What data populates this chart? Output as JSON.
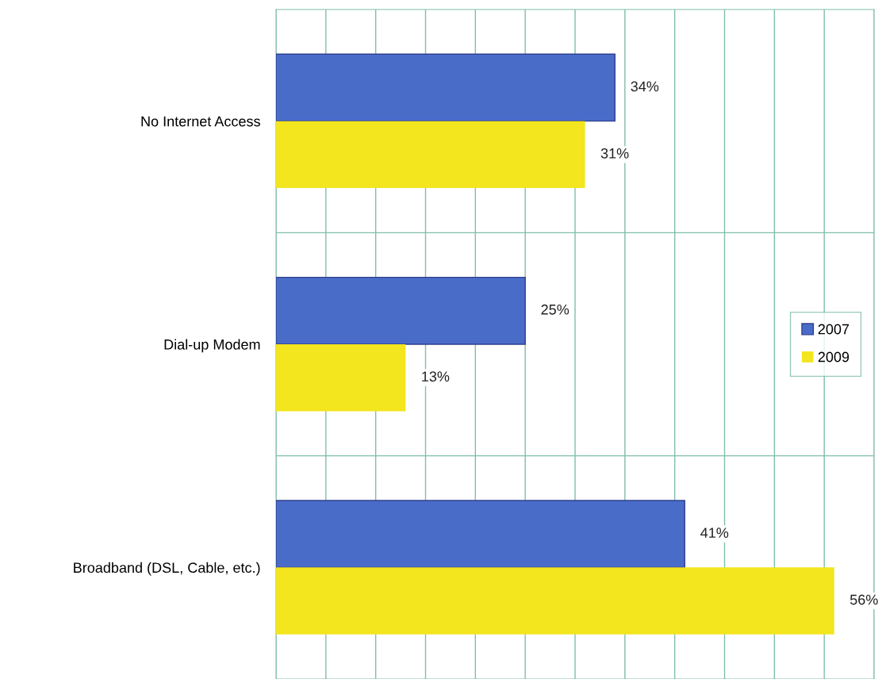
{
  "chart_data": {
    "type": "bar",
    "orientation": "horizontal",
    "categories": [
      "No Internet Access",
      "Dial-up Modem",
      "Broadband (DSL, Cable, etc.)"
    ],
    "series": [
      {
        "name": "2007",
        "color": "#4a6cc9",
        "values": [
          34,
          25,
          41
        ],
        "value_labels": [
          "34%",
          "25%",
          "41%"
        ]
      },
      {
        "name": "2009",
        "color": "#f3e51e",
        "values": [
          31,
          13,
          56
        ],
        "value_labels": [
          "31%",
          "13%",
          "56%"
        ]
      }
    ],
    "xlim": [
      0,
      60
    ],
    "xticks": [
      {
        "value": 0,
        "label": null
      },
      {
        "value": 5,
        "label": null
      },
      {
        "value": 10,
        "label": null
      },
      {
        "value": 15,
        "label": null
      },
      {
        "value": 20,
        "label": null
      },
      {
        "value": 25,
        "label": null
      },
      {
        "value": 30,
        "label": null
      },
      {
        "value": 35,
        "label": null
      },
      {
        "value": 40,
        "label": null
      },
      {
        "value": 45,
        "label": null
      },
      {
        "value": 50,
        "label": null
      },
      {
        "value": 55,
        "label": null
      },
      {
        "value": 60,
        "label": null
      }
    ],
    "tick_labels": "y",
    "grid": true,
    "legend": "right"
  }
}
